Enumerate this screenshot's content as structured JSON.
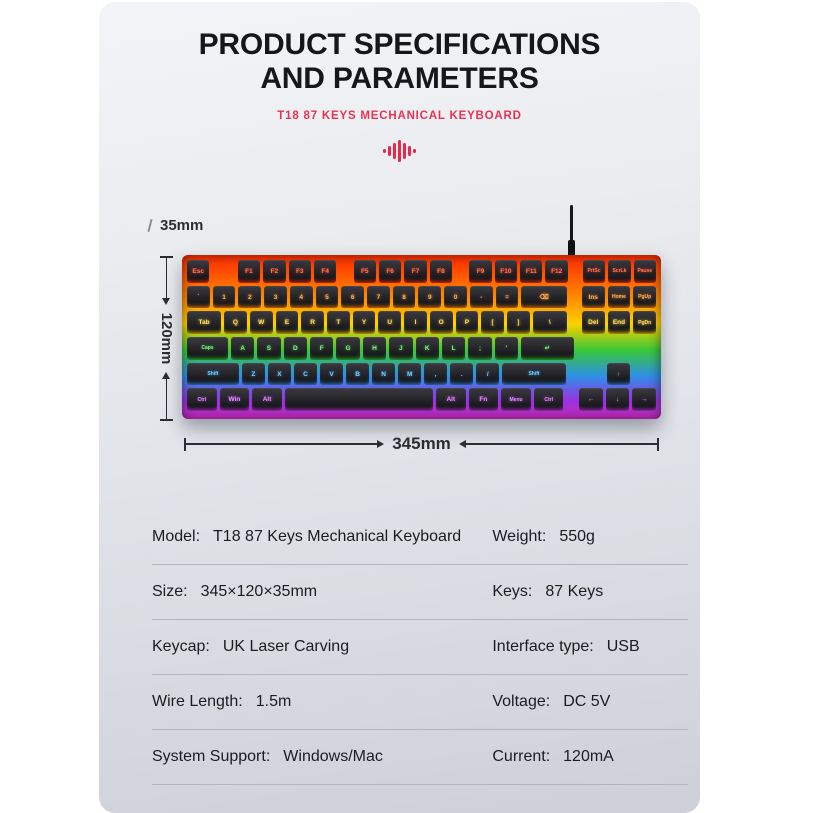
{
  "header": {
    "title_line1": "PRODUCT SPECIFICATIONS",
    "title_line2": "AND PARAMETERS",
    "subtitle": "T18 87 KEYS MECHANICAL KEYBOARD",
    "accent_color": "#e8274b",
    "wave_icon": "soundwave-icon"
  },
  "diagram": {
    "height_label": "35mm",
    "depth_label": "120mm",
    "width_label": "345mm"
  },
  "keyboard": {
    "glow_top_color": "#ff2e00",
    "glow_bottom_color": "#d02cc4",
    "rows": [
      {
        "label_color": "#ff7a5e",
        "glow": "#ff2d00",
        "keys": [
          {
            "label": "Esc",
            "w": 1
          },
          {
            "gap": 1
          },
          {
            "label": "F1"
          },
          {
            "label": "F2"
          },
          {
            "label": "F3"
          },
          {
            "label": "F4"
          },
          {
            "gap": 0.5
          },
          {
            "label": "F5"
          },
          {
            "label": "F6"
          },
          {
            "label": "F7"
          },
          {
            "label": "F8"
          },
          {
            "gap": 0.5
          },
          {
            "label": "F9"
          },
          {
            "label": "F10"
          },
          {
            "label": "F11"
          },
          {
            "label": "F12"
          },
          {
            "gap": 0.4
          },
          {
            "label": "PrtSc"
          },
          {
            "label": "ScrLk"
          },
          {
            "label": "Pause"
          }
        ]
      },
      {
        "label_color": "#ffb35c",
        "glow": "#ff8400",
        "keys": [
          {
            "label": "`"
          },
          {
            "label": "1"
          },
          {
            "label": "2"
          },
          {
            "label": "3"
          },
          {
            "label": "4"
          },
          {
            "label": "5"
          },
          {
            "label": "6"
          },
          {
            "label": "7"
          },
          {
            "label": "8"
          },
          {
            "label": "9"
          },
          {
            "label": "0"
          },
          {
            "label": "-"
          },
          {
            "label": "="
          },
          {
            "label": "⌫",
            "w": 2
          },
          {
            "gap": 0.4
          },
          {
            "label": "Ins"
          },
          {
            "label": "Home"
          },
          {
            "label": "PgUp"
          }
        ]
      },
      {
        "label_color": "#ffe070",
        "glow": "#ffd000",
        "keys": [
          {
            "label": "Tab",
            "w": 1.5
          },
          {
            "label": "Q"
          },
          {
            "label": "W"
          },
          {
            "label": "E"
          },
          {
            "label": "R"
          },
          {
            "label": "T"
          },
          {
            "label": "Y"
          },
          {
            "label": "U"
          },
          {
            "label": "I"
          },
          {
            "label": "O"
          },
          {
            "label": "P"
          },
          {
            "label": "["
          },
          {
            "label": "]"
          },
          {
            "label": "\\",
            "w": 1.5
          },
          {
            "gap": 0.4
          },
          {
            "label": "Del"
          },
          {
            "label": "End"
          },
          {
            "label": "PgDn"
          }
        ]
      },
      {
        "label_color": "#8af08a",
        "glow": "#2ecb2e",
        "keys": [
          {
            "label": "Caps",
            "w": 1.75
          },
          {
            "label": "A"
          },
          {
            "label": "S"
          },
          {
            "label": "D"
          },
          {
            "label": "F"
          },
          {
            "label": "G"
          },
          {
            "label": "H"
          },
          {
            "label": "J"
          },
          {
            "label": "K"
          },
          {
            "label": "L"
          },
          {
            "label": ";"
          },
          {
            "label": "'"
          },
          {
            "label": "↵",
            "w": 2.25
          },
          {
            "gap": 3.4
          }
        ]
      },
      {
        "label_color": "#79d2ff",
        "glow": "#2f8fe8",
        "keys": [
          {
            "label": "Shift",
            "w": 2.25
          },
          {
            "label": "Z"
          },
          {
            "label": "X"
          },
          {
            "label": "C"
          },
          {
            "label": "V"
          },
          {
            "label": "B"
          },
          {
            "label": "N"
          },
          {
            "label": "M"
          },
          {
            "label": ","
          },
          {
            "label": "."
          },
          {
            "label": "/"
          },
          {
            "label": "Shift",
            "w": 2.75
          },
          {
            "gap": 0.4
          },
          {
            "gap": 1
          },
          {
            "label": "↑"
          },
          {
            "gap": 1
          }
        ]
      },
      {
        "label_color": "#e893ff",
        "glow": "#c23ae0",
        "keys": [
          {
            "label": "Ctrl",
            "w": 1.25
          },
          {
            "label": "Win",
            "w": 1.25
          },
          {
            "label": "Alt",
            "w": 1.25
          },
          {
            "label": "",
            "w": 6.25
          },
          {
            "label": "Alt",
            "w": 1.25
          },
          {
            "label": "Fn",
            "w": 1.25
          },
          {
            "label": "Menu",
            "w": 1.25
          },
          {
            "label": "Ctrl",
            "w": 1.25
          },
          {
            "gap": 0.4
          },
          {
            "label": "←"
          },
          {
            "label": "↓"
          },
          {
            "label": "→"
          }
        ]
      }
    ]
  },
  "spec_table": {
    "rows": [
      {
        "left_label": "Model:",
        "left_value": "T18 87 Keys Mechanical Keyboard",
        "right_label": "Weight:",
        "right_value": "550g"
      },
      {
        "left_label": "Size:",
        "left_value": "345×120×35mm",
        "right_label": "Keys:",
        "right_value": "87 Keys"
      },
      {
        "left_label": "Keycap:",
        "left_value": "UK Laser Carving",
        "right_label": "Interface type:",
        "right_value": "USB"
      },
      {
        "left_label": "Wire Length:",
        "left_value": "1.5m",
        "right_label": "Voltage:",
        "right_value": "DC 5V"
      },
      {
        "left_label": "System Support:",
        "left_value": "Windows/Mac",
        "right_label": "Current:",
        "right_value": "120mA"
      }
    ]
  }
}
